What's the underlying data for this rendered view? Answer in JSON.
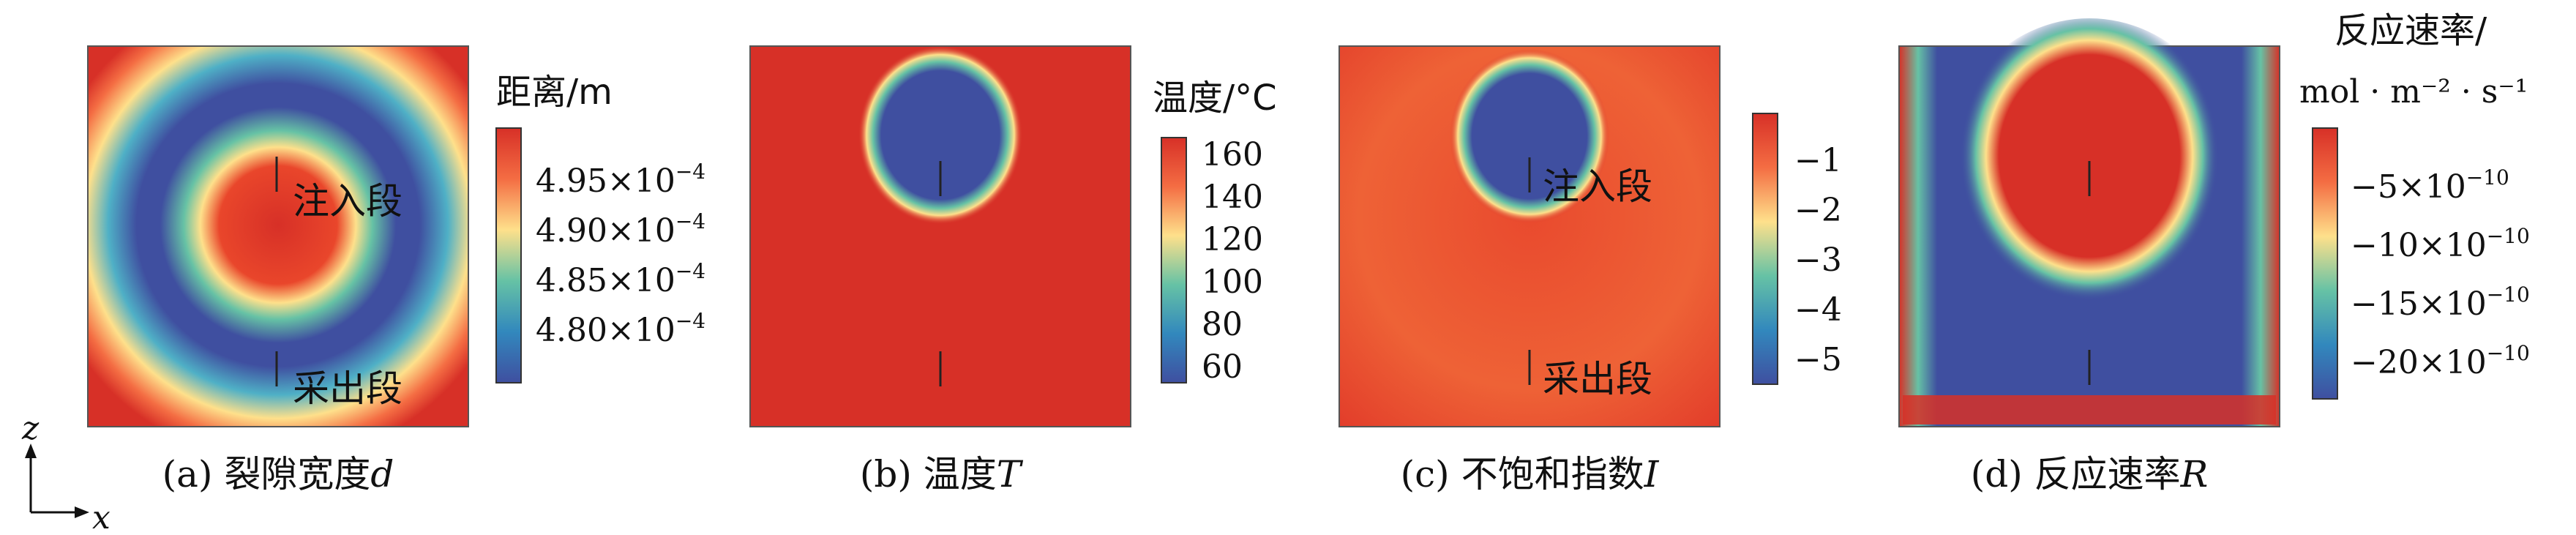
{
  "panels": [
    {
      "id": "a",
      "caption_prefix": "(a) 裂隙宽度",
      "caption_var": "d",
      "colorbar_title_line1": "距离/m",
      "colorbar_title_line2": "",
      "ticks": [
        "4.95×10",
        "4.90×10",
        "4.85×10",
        "4.80×10"
      ],
      "tick_exps": [
        "−4",
        "−4",
        "−4",
        "−4"
      ],
      "annotations": [
        "注入段",
        "采出段"
      ],
      "field": "ring"
    },
    {
      "id": "b",
      "caption_prefix": "(b) 温度",
      "caption_var": "T",
      "colorbar_title_line1": "温度/°C",
      "colorbar_title_line2": "",
      "ticks": [
        "160",
        "140",
        "120",
        "100",
        "80",
        "60"
      ],
      "tick_exps": [
        "",
        "",
        "",
        "",
        "",
        ""
      ],
      "annotations": [],
      "field": "cold-core"
    },
    {
      "id": "c",
      "caption_prefix": "(c) 不饱和指数",
      "caption_var": "I",
      "colorbar_title_line1": "",
      "colorbar_title_line2": "",
      "ticks": [
        "−1",
        "−2",
        "−3",
        "−4",
        "−5"
      ],
      "tick_exps": [
        "",
        "",
        "",
        "",
        ""
      ],
      "annotations": [
        "注入段",
        "采出段"
      ],
      "field": "cold-core-orange"
    },
    {
      "id": "d",
      "caption_prefix": "(d) 反应速率",
      "caption_var": "R",
      "colorbar_title_line1": "反应速率/",
      "colorbar_title_line2": "mol · m⁻² · s⁻¹",
      "ticks": [
        "−5×10",
        "−10×10",
        "−15×10",
        "−20×10"
      ],
      "tick_exps": [
        "−10",
        "−10",
        "−10",
        "−10"
      ],
      "annotations": [],
      "field": "hot-core"
    }
  ],
  "axes": {
    "z_label": "z",
    "x_label": "x"
  },
  "colors": {
    "red": "#d73027",
    "orange": "#f46d43",
    "yellow": "#fee08b",
    "green": "#66c2a5",
    "cyan": "#4fb0c6",
    "blue": "#3f4fa0"
  }
}
